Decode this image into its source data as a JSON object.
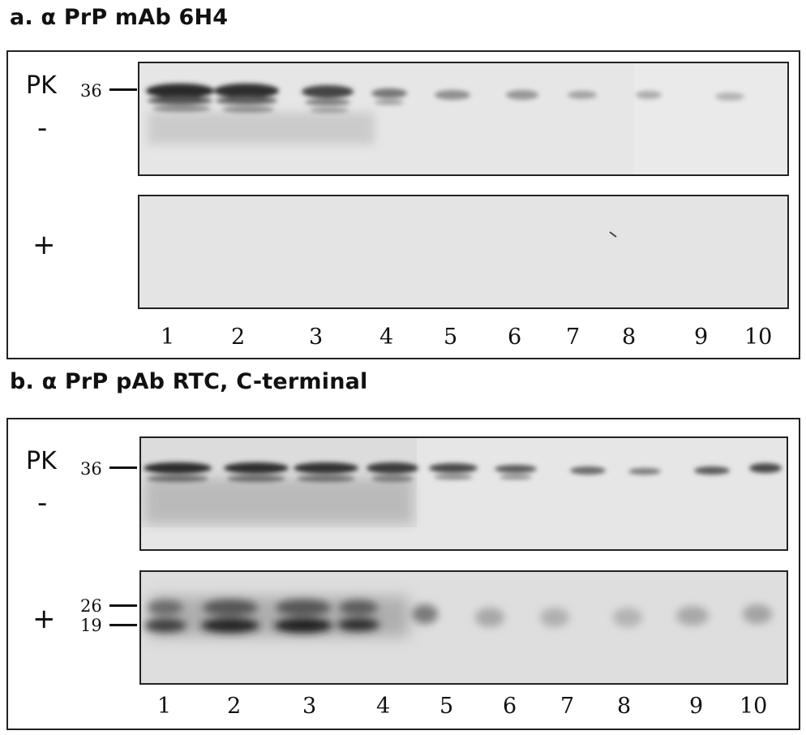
{
  "panel_a": {
    "title": "a. α PrP mAb 6H4",
    "pk_label": "PK",
    "minus": "-",
    "plus": "+",
    "markers_minus": [
      "36"
    ],
    "lanes": [
      "1",
      "2",
      "3",
      "4",
      "5",
      "6",
      "7",
      "8",
      "9",
      "10"
    ]
  },
  "panel_b": {
    "title": "b. α PrP pAb RTC, C-terminal",
    "pk_label": "PK",
    "minus": "-",
    "plus": "+",
    "markers_minus": [
      "36"
    ],
    "markers_plus": [
      "26",
      "19"
    ],
    "lanes": [
      "1",
      "2",
      "3",
      "4",
      "5",
      "6",
      "7",
      "8",
      "9",
      "10"
    ]
  }
}
